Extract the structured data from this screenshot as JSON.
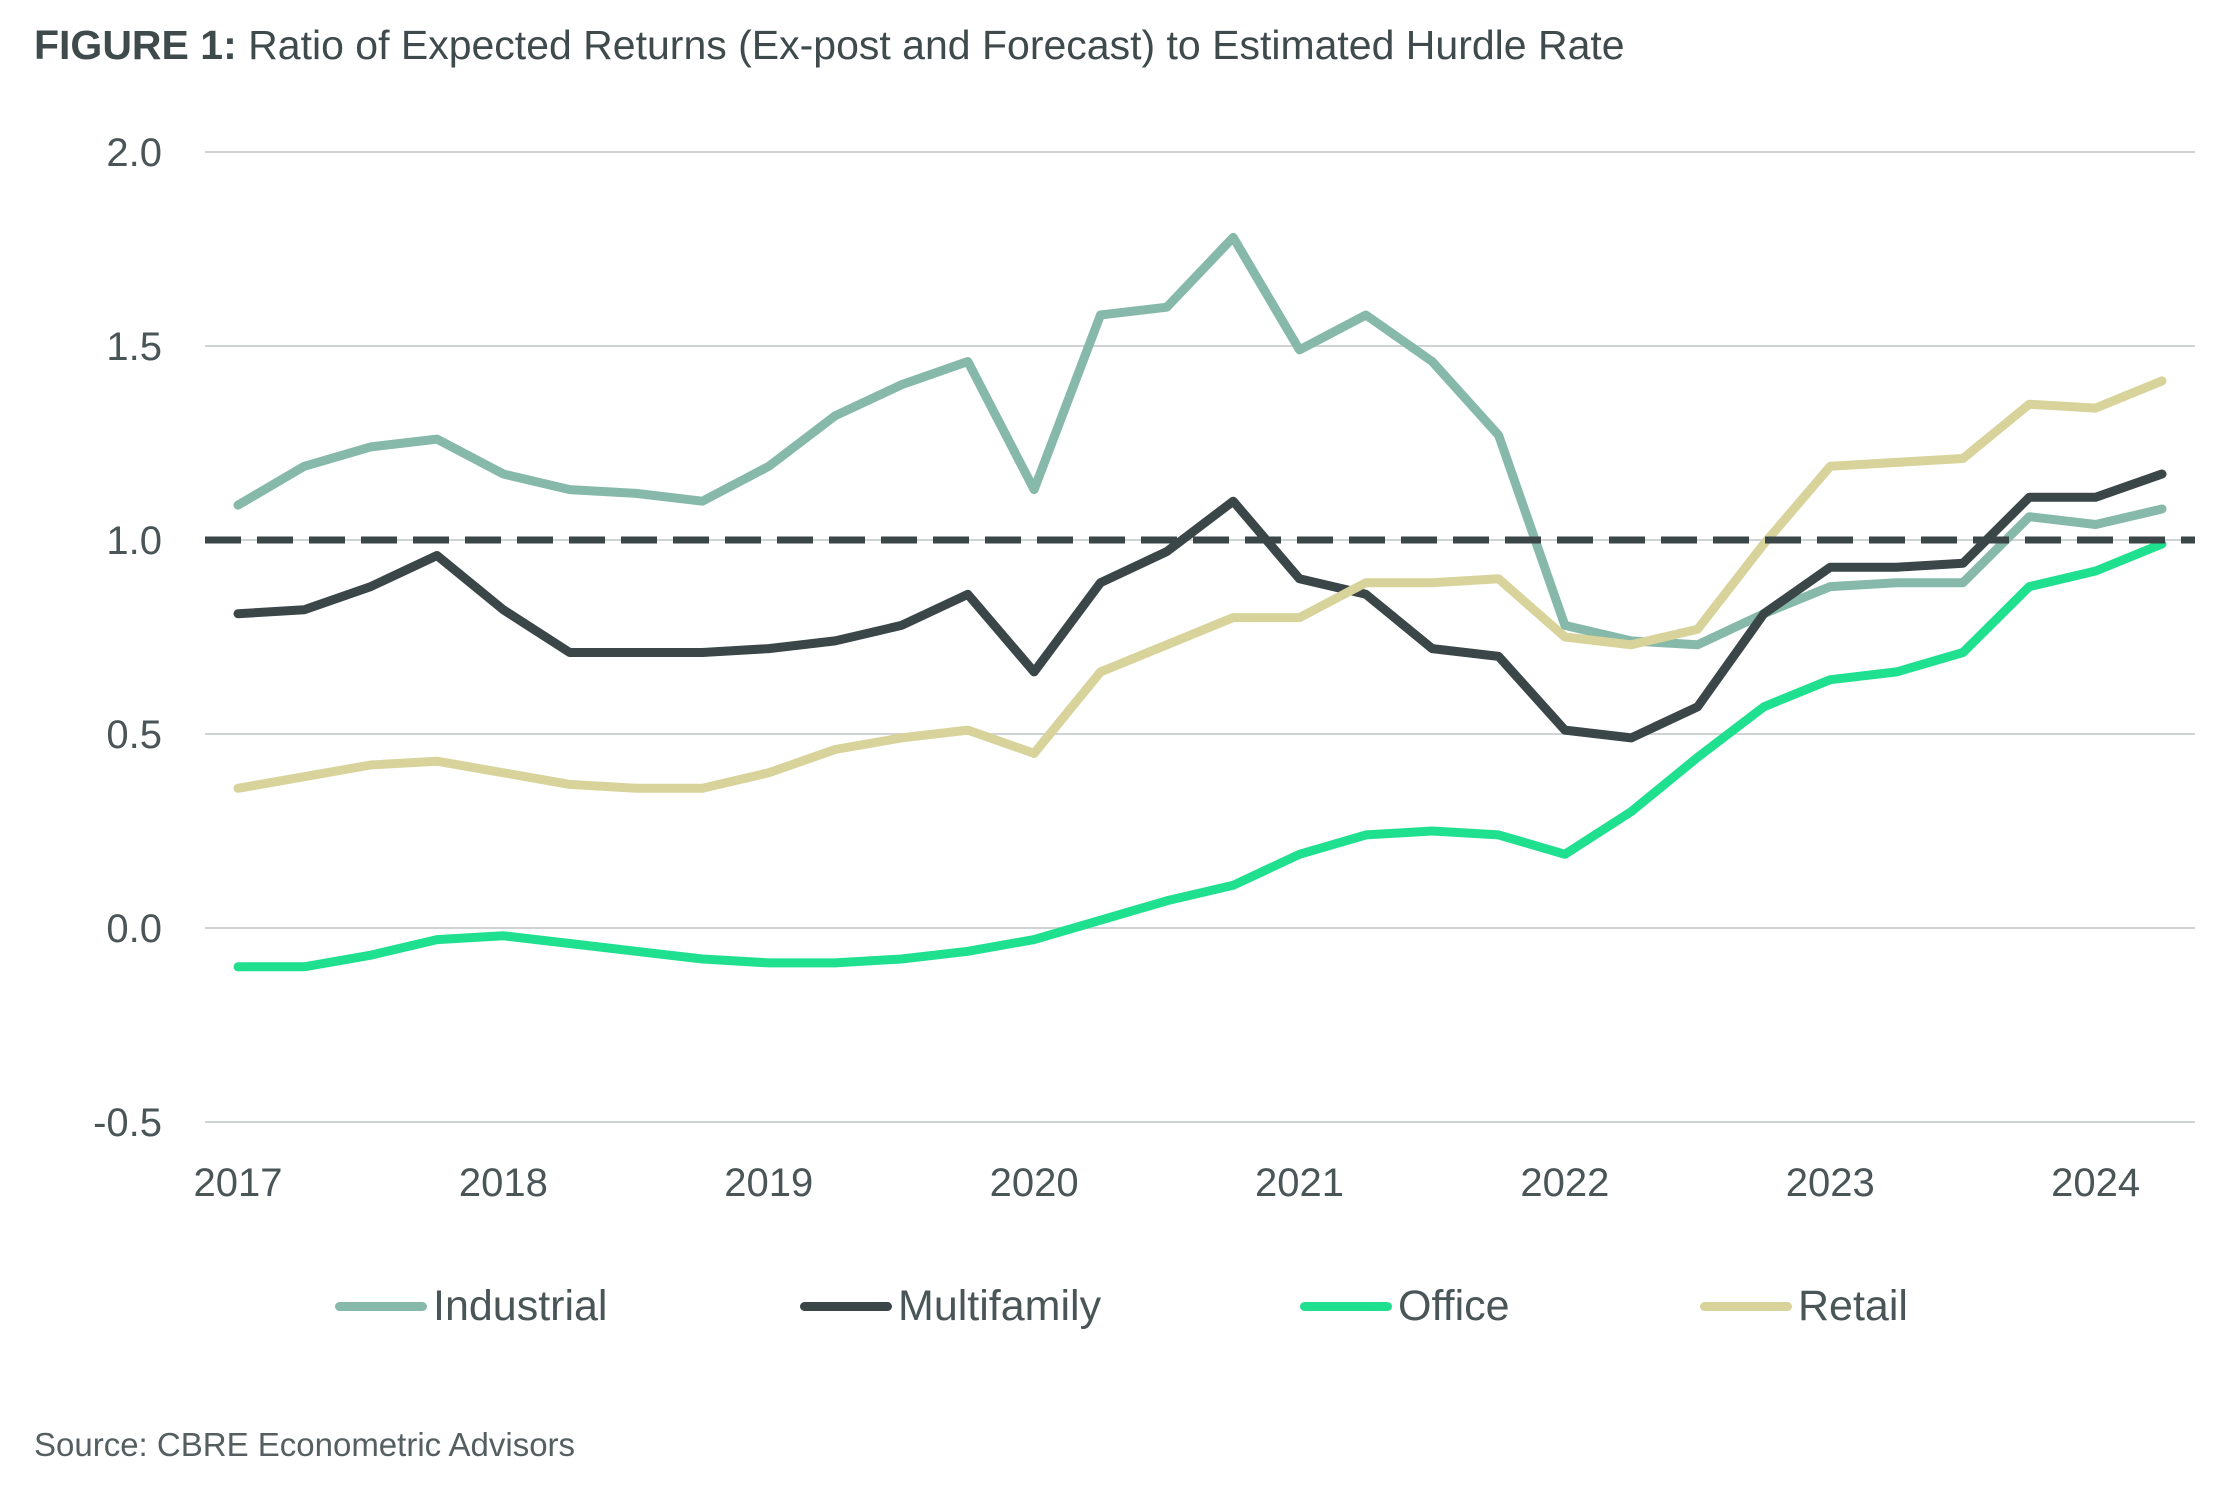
{
  "title": {
    "prefix": "FIGURE 1:",
    "text": "Ratio of Expected Returns (Ex-post and Forecast) to Estimated Hurdle Rate"
  },
  "source": "Source: CBRE Econometric Advisors",
  "chart_data": {
    "type": "line",
    "title": "",
    "xlabel": "",
    "ylabel": "",
    "ylim": [
      -0.5,
      2.0
    ],
    "yticks": [
      "2.0",
      "1.5",
      "1.0",
      "0.5",
      "0.0",
      "-0.5"
    ],
    "xticks": [
      "2017",
      "2018",
      "2019",
      "2020",
      "2021",
      "2022",
      "2023",
      "2024"
    ],
    "grid": "horizontal",
    "legend": "bottom",
    "x": [
      "2017Q1",
      "2017Q2",
      "2017Q3",
      "2017Q4",
      "2018Q1",
      "2018Q2",
      "2018Q3",
      "2018Q4",
      "2019Q1",
      "2019Q2",
      "2019Q3",
      "2019Q4",
      "2020Q1",
      "2020Q2",
      "2020Q3",
      "2020Q4",
      "2021Q1",
      "2021Q2",
      "2021Q3",
      "2021Q4",
      "2022Q1",
      "2022Q2",
      "2022Q3",
      "2022Q4",
      "2023Q1",
      "2023Q2",
      "2023Q3",
      "2023Q4",
      "2024Q1",
      "2024Q2"
    ],
    "reference_line": {
      "y": 1.0,
      "style": "dashed",
      "color": "#3a4648"
    },
    "series": [
      {
        "name": "Industrial",
        "color": "#86b9a9",
        "values": [
          1.09,
          1.19,
          1.24,
          1.26,
          1.17,
          1.13,
          1.12,
          1.1,
          1.19,
          1.32,
          1.4,
          1.46,
          1.13,
          1.58,
          1.6,
          1.78,
          1.49,
          1.58,
          1.46,
          1.27,
          0.78,
          0.74,
          0.73,
          0.81,
          0.88,
          0.89,
          0.89,
          1.06,
          1.04,
          1.08
        ]
      },
      {
        "name": "Multifamily",
        "color": "#3a4648",
        "values": [
          0.81,
          0.82,
          0.88,
          0.96,
          0.82,
          0.71,
          0.71,
          0.71,
          0.72,
          0.74,
          0.78,
          0.86,
          0.66,
          0.89,
          0.97,
          1.1,
          0.9,
          0.86,
          0.72,
          0.7,
          0.51,
          0.49,
          0.57,
          0.81,
          0.93,
          0.93,
          0.94,
          1.11,
          1.11,
          1.17
        ]
      },
      {
        "name": "Office",
        "color": "#1ee08f",
        "values": [
          -0.1,
          -0.1,
          -0.07,
          -0.03,
          -0.02,
          -0.04,
          -0.06,
          -0.08,
          -0.09,
          -0.09,
          -0.08,
          -0.06,
          -0.03,
          0.02,
          0.07,
          0.11,
          0.19,
          0.24,
          0.25,
          0.24,
          0.19,
          0.3,
          0.44,
          0.57,
          0.64,
          0.66,
          0.71,
          0.88,
          0.92,
          0.99
        ]
      },
      {
        "name": "Retail",
        "color": "#d8d39a",
        "values": [
          0.36,
          0.39,
          0.42,
          0.43,
          0.4,
          0.37,
          0.36,
          0.36,
          0.4,
          0.46,
          0.49,
          0.51,
          0.45,
          0.66,
          0.73,
          0.8,
          0.8,
          0.89,
          0.89,
          0.9,
          0.75,
          0.73,
          0.77,
          0.99,
          1.19,
          1.2,
          1.21,
          1.35,
          1.34,
          1.41
        ]
      }
    ]
  }
}
